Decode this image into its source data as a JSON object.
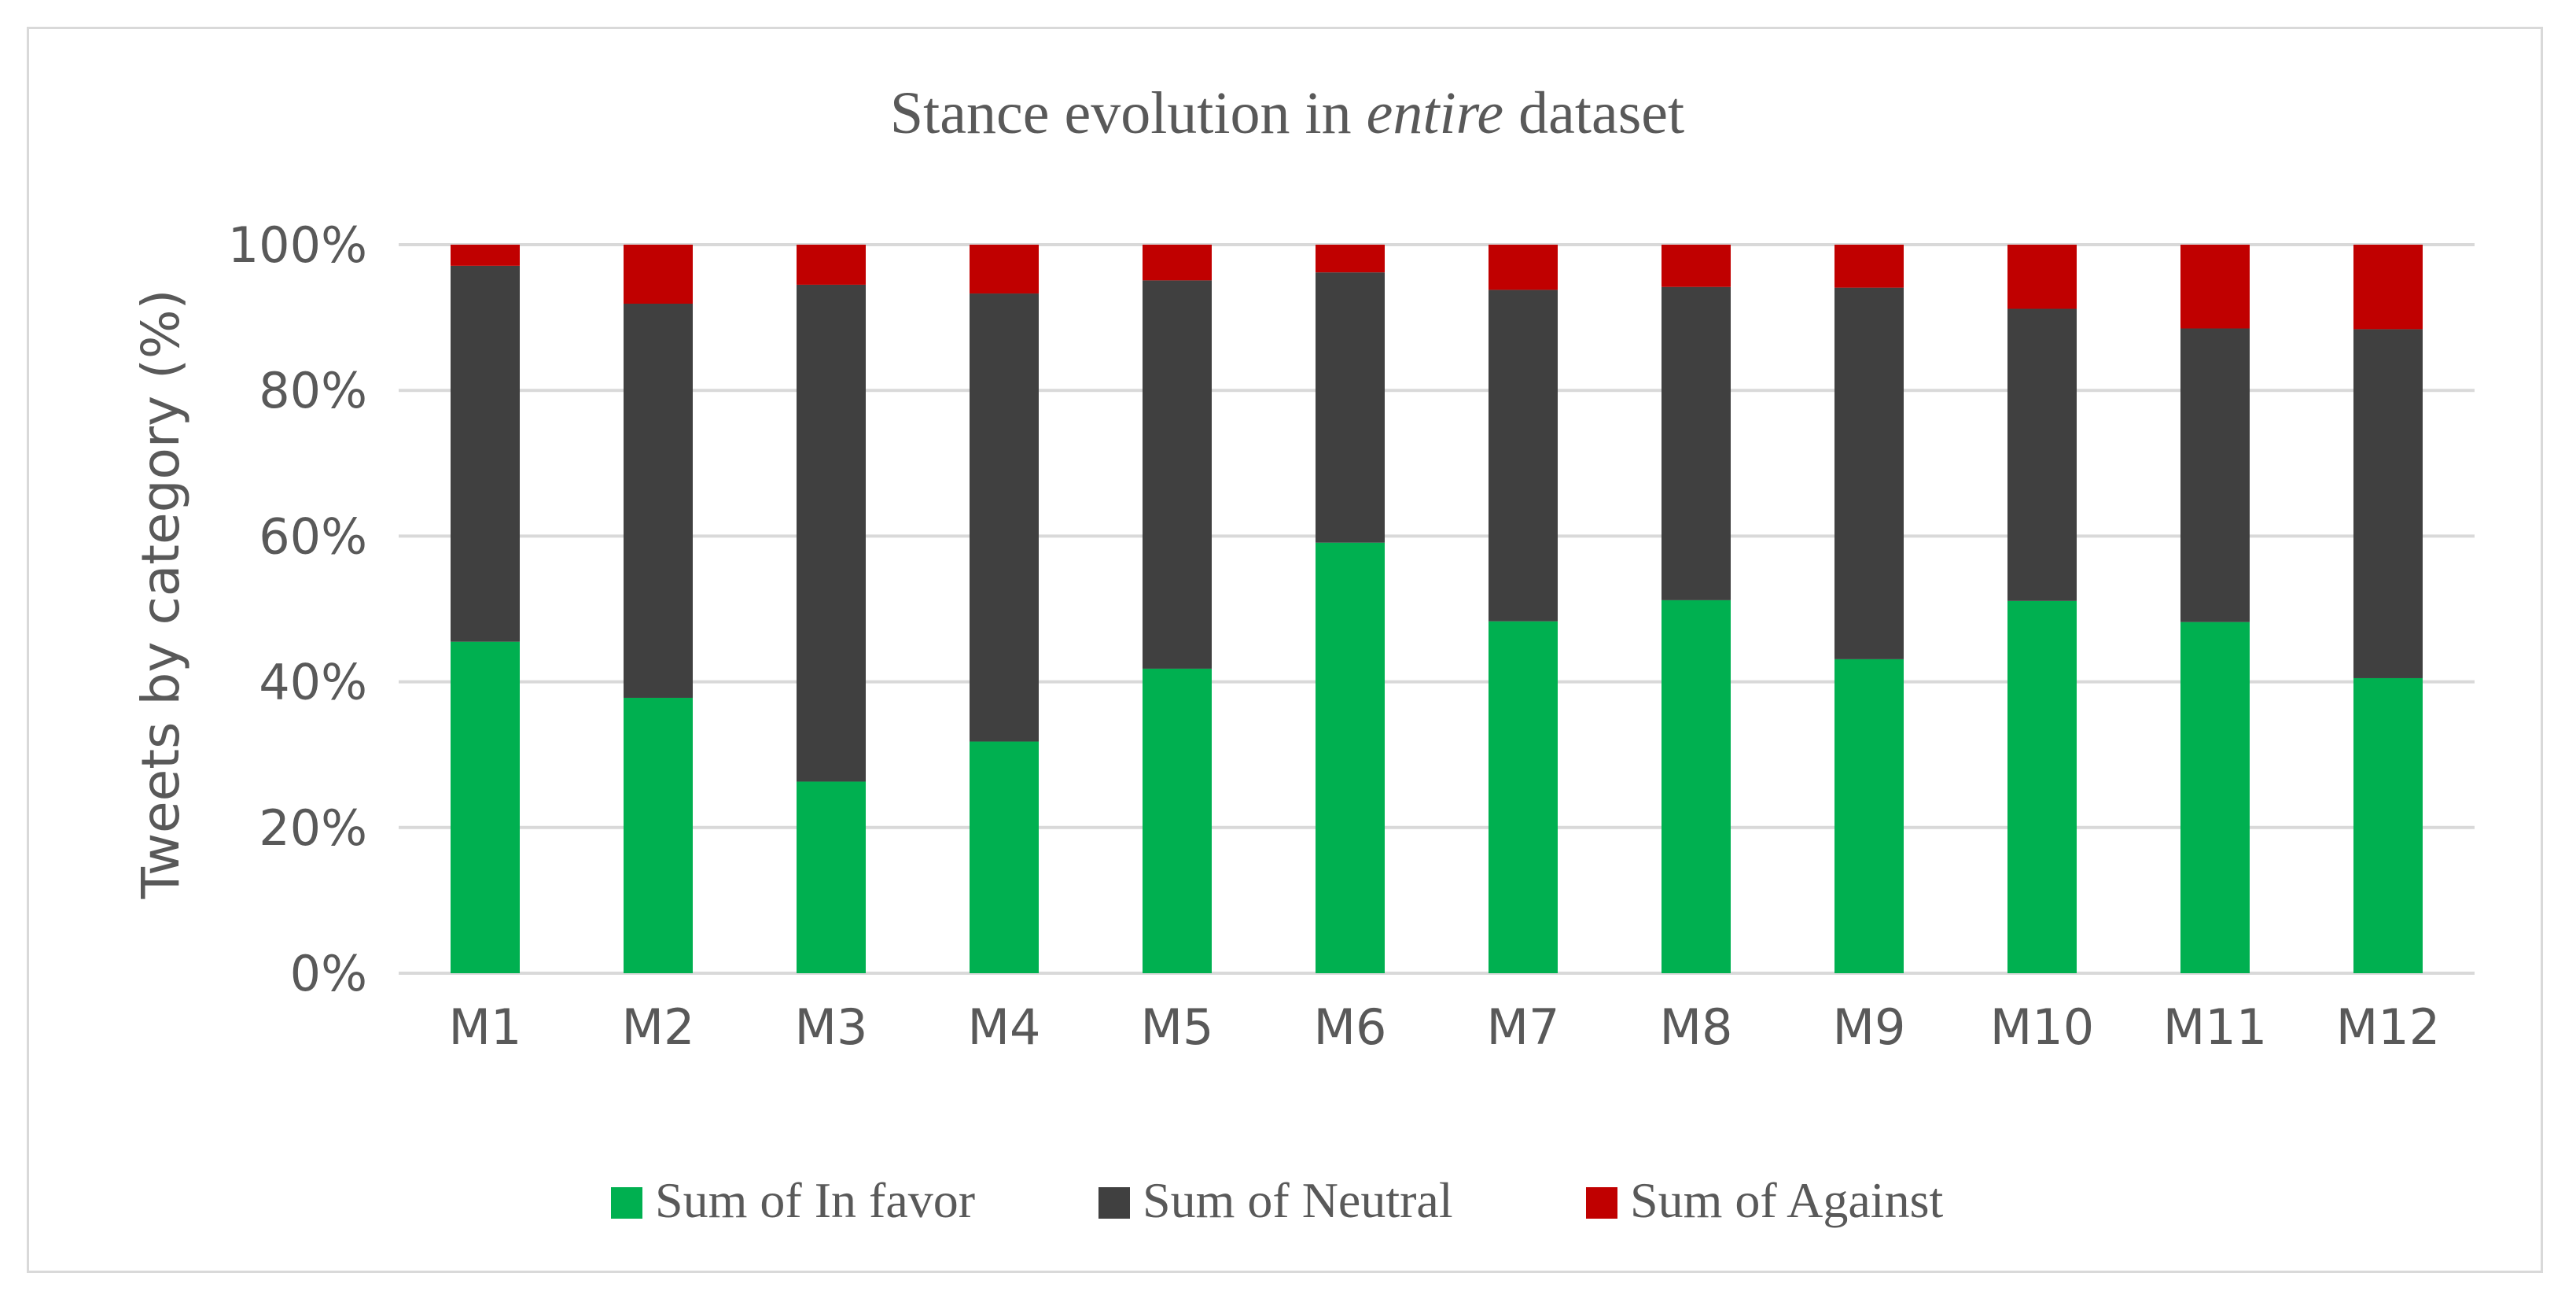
{
  "chart_data": {
    "type": "bar",
    "stacked": true,
    "normalized": true,
    "title_prefix": "Stance evolution in ",
    "title_emphasis": "entire",
    "title_suffix": " dataset",
    "xlabel": "",
    "ylabel": "Tweets by category (%)",
    "ylim": [
      0,
      100
    ],
    "yticks": [
      "0%",
      "20%",
      "40%",
      "60%",
      "80%",
      "100%"
    ],
    "grid": true,
    "legend_position": "bottom",
    "categories": [
      "M1",
      "M2",
      "M3",
      "M4",
      "M5",
      "M6",
      "M7",
      "M8",
      "M9",
      "M10",
      "M11",
      "M12"
    ],
    "series": [
      {
        "name": "Sum of In favor",
        "color": "#00b050",
        "values": [
          45.5,
          37.8,
          26.3,
          31.8,
          41.8,
          59.1,
          48.3,
          51.2,
          43.1,
          51.1,
          48.2,
          40.5
        ]
      },
      {
        "name": "Sum of Neutral",
        "color": "#404040",
        "values": [
          51.6,
          54.1,
          68.2,
          61.5,
          53.3,
          37.1,
          45.5,
          43.0,
          51.0,
          40.1,
          40.3,
          47.9
        ]
      },
      {
        "name": "Sum of Against",
        "color": "#c00000",
        "values": [
          2.9,
          8.1,
          5.5,
          6.7,
          4.9,
          3.8,
          6.2,
          5.8,
          5.9,
          8.8,
          11.5,
          11.6
        ]
      }
    ]
  }
}
